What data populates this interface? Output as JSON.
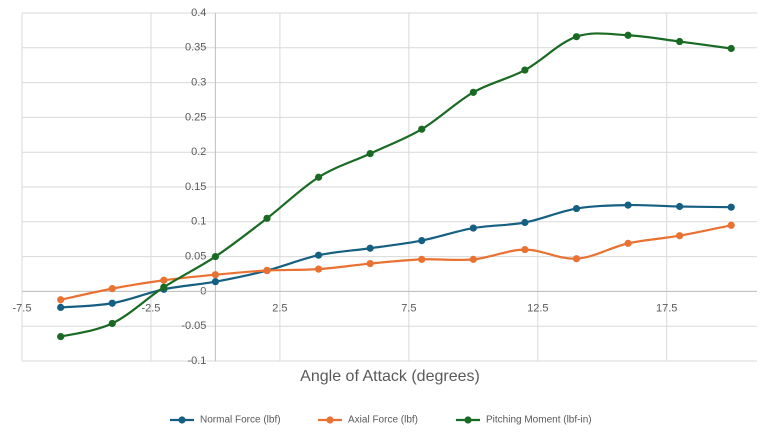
{
  "chart_data": {
    "type": "line",
    "x_label": "Angle of Attack (degrees)",
    "x": [
      -6,
      -4,
      -2,
      0,
      2,
      4,
      6,
      8,
      10,
      12,
      14,
      16,
      18,
      20
    ],
    "series": [
      {
        "name": "Normal Force (lbf)",
        "color": "#156082",
        "values": [
          -0.023,
          -0.017,
          0.003,
          0.014,
          0.03,
          0.052,
          0.062,
          0.073,
          0.091,
          0.099,
          0.119,
          0.124,
          0.122,
          0.121
        ]
      },
      {
        "name": "Axial Force (lbf)",
        "color": "#e97132",
        "values": [
          -0.012,
          0.004,
          0.016,
          0.024,
          0.03,
          0.032,
          0.04,
          0.046,
          0.046,
          0.06,
          0.047,
          0.069,
          0.08,
          0.095
        ]
      },
      {
        "name": "Pitching Moment (lbf-in)",
        "color": "#196b24",
        "values": [
          -0.065,
          -0.046,
          0.006,
          0.05,
          0.105,
          0.164,
          0.198,
          0.233,
          0.286,
          0.318,
          0.366,
          0.368,
          0.359,
          0.349
        ]
      }
    ],
    "xlim": [
      -7.5,
      21
    ],
    "xticks": [
      -7.5,
      -2.5,
      2.5,
      7.5,
      12.5,
      17.5
    ],
    "ylim": [
      -0.1,
      0.4
    ],
    "yticks": [
      -0.1,
      -0.05,
      0,
      0.05,
      0.1,
      0.15,
      0.2,
      0.25,
      0.3,
      0.35,
      0.4
    ],
    "grid": true,
    "smooth": true,
    "legend": "bottom"
  }
}
